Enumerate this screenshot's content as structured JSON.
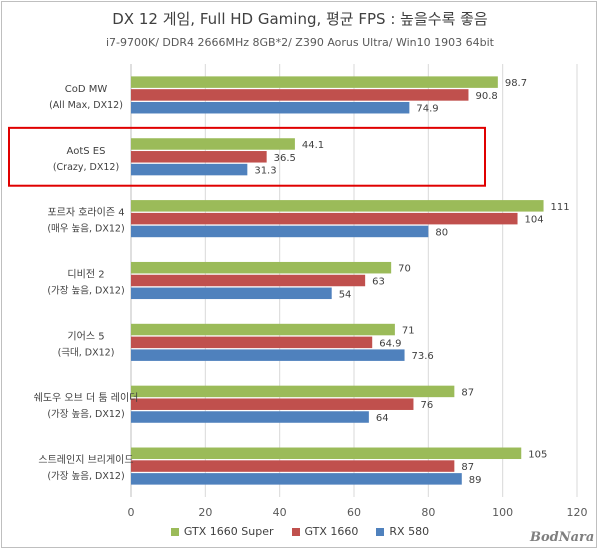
{
  "chart_data": {
    "type": "bar",
    "orientation": "horizontal",
    "title": "DX 12 게임, Full HD Gaming, 평균 FPS : 높을수록 좋음",
    "subtitle": "i7-9700K/ DDR4 2666MHz 8GB*2/ Z390 Aorus Ultra/ Win10 1903 64bit",
    "categories": [
      [
        "CoD MW",
        "(All Max, DX12)"
      ],
      [
        "AotS ES",
        "(Crazy, DX12)"
      ],
      [
        "포르자 호라이즌 4",
        "(매우 높음, DX12)"
      ],
      [
        "디비전 2",
        "(가장 높음, DX12)"
      ],
      [
        "기어스 5",
        "(극대, DX12)"
      ],
      [
        "쉐도우 오브 더 툼 레이더",
        "(가장 높음, DX12)"
      ],
      [
        "스트레인지 브리게이드",
        "(가장 높음, DX12)"
      ]
    ],
    "series": [
      {
        "name": "GTX 1660 Super",
        "color": "#9bbb59",
        "values": [
          98.7,
          44.1,
          111,
          70,
          71,
          87,
          105
        ],
        "labels": [
          "98.7",
          "44.1",
          "111",
          "70",
          "71",
          "87",
          "105"
        ]
      },
      {
        "name": "GTX 1660",
        "color": "#c0504d",
        "values": [
          90.8,
          36.5,
          104,
          63,
          64.9,
          76,
          87
        ],
        "labels": [
          "90.8",
          "36.5",
          "104",
          "63",
          "64.9",
          "76",
          "87"
        ]
      },
      {
        "name": "RX 580",
        "color": "#4f81bd",
        "values": [
          74.9,
          31.3,
          80,
          54,
          73.6,
          64,
          89
        ],
        "labels": [
          "74.9",
          "31.3",
          "80",
          "54",
          "73.6",
          "64",
          "89"
        ]
      }
    ],
    "xlim": [
      0,
      120
    ],
    "xticks": [
      0,
      20,
      40,
      60,
      80,
      100,
      120
    ],
    "grid": true,
    "legend_position": "bottom",
    "highlighted_category": "AotS ES",
    "highlight_color": "#e00000",
    "grid_color": "#d9d9d9",
    "axis_color": "#bfbfbf"
  },
  "watermark": "BodNara"
}
